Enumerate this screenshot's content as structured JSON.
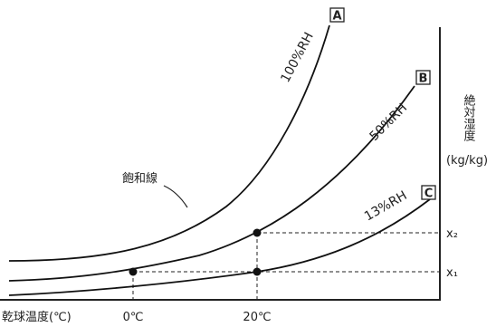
{
  "chart_data": {
    "type": "line",
    "xlabel": "乾球温度(℃)",
    "ylabel": "絶対湿度",
    "ylabel_unit": "(kg/kg)",
    "x_ticks": [
      "0℃",
      "20℃"
    ],
    "y_ticks": [
      "x₂",
      "x₁"
    ],
    "annotation": "飽和線",
    "series": [
      {
        "name": "100%RH",
        "marker": "A"
      },
      {
        "name": "50%RH",
        "marker": "B"
      },
      {
        "name": "13%RH",
        "marker": "C"
      }
    ],
    "points": [
      {
        "series": "50%RH",
        "x": "0℃",
        "y": "x₁"
      },
      {
        "series": "13%RH",
        "x": "20℃",
        "y": "x₁"
      },
      {
        "series": "50%RH",
        "x": "20℃",
        "y": "x₂"
      }
    ],
    "colors": {
      "line": "#111111",
      "background": "#ffffff"
    }
  }
}
